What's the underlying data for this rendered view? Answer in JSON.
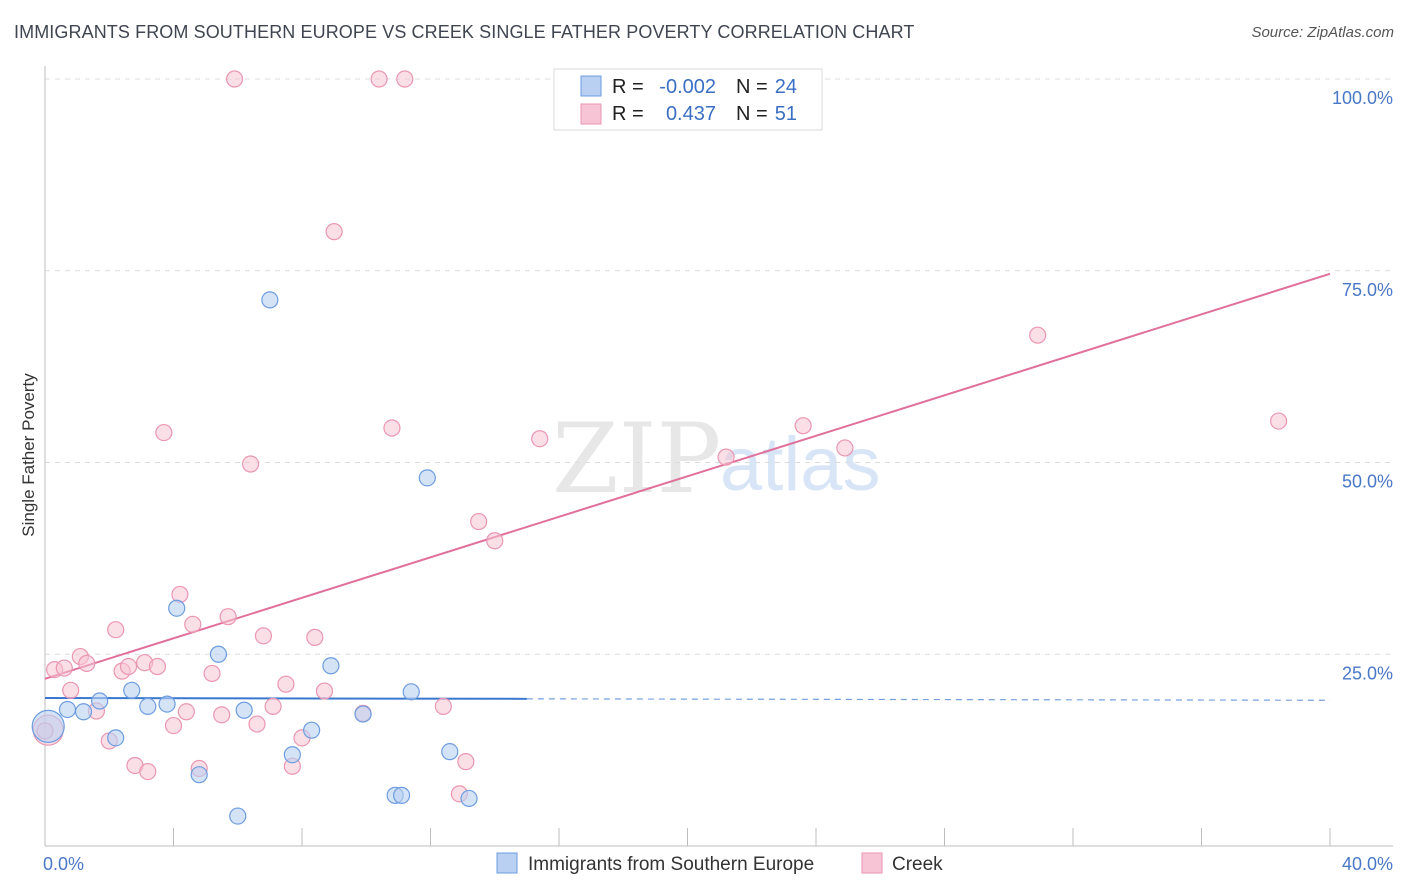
{
  "header": {
    "title": "IMMIGRANTS FROM SOUTHERN EUROPE VS CREEK SINGLE FATHER POVERTY CORRELATION CHART",
    "source": "Source: ZipAtlas.com"
  },
  "watermark": {
    "zip": "ZIP",
    "atlas": "atlas"
  },
  "colors": {
    "blue_fill": "#b9d0f2",
    "blue_stroke": "#6d9de0",
    "blue_line": "#3a78d0",
    "pink_fill": "#f6c4d4",
    "pink_stroke": "#eb96b2",
    "pink_line": "#e0709a",
    "grid": "#dcdcdc",
    "tick_text": "#4a78c8"
  },
  "legend_top": {
    "rows": [
      {
        "r_label": "R =",
        "r_value": "-0.002",
        "n_label": "N =",
        "n_value": "24"
      },
      {
        "r_label": "R =",
        "r_value": "0.437",
        "n_label": "N =",
        "n_value": "51"
      }
    ]
  },
  "legend_bottom": {
    "items": [
      "Immigrants from Southern Europe",
      "Creek"
    ]
  },
  "chart_data": {
    "type": "scatter",
    "title": "IMMIGRANTS FROM SOUTHERN EUROPE VS CREEK SINGLE FATHER POVERTY CORRELATION CHART",
    "xlabel": "",
    "ylabel": "Single Father Poverty",
    "xlim": [
      0,
      40
    ],
    "ylim": [
      0,
      100
    ],
    "x_tick_labels": [
      "0.0%",
      "40.0%"
    ],
    "y_tick_values": [
      25,
      50,
      75,
      100
    ],
    "y_tick_labels": [
      "25.0%",
      "50.0%",
      "75.0%",
      "100.0%"
    ],
    "grid": true,
    "series": [
      {
        "name": "Immigrants from Southern Europe",
        "r": -0.002,
        "n": 24,
        "points": [
          {
            "x": 0.1,
            "y": 15.6,
            "size": "large"
          },
          {
            "x": 0.7,
            "y": 17.8
          },
          {
            "x": 1.2,
            "y": 17.5
          },
          {
            "x": 1.7,
            "y": 18.9
          },
          {
            "x": 2.2,
            "y": 14.1
          },
          {
            "x": 2.7,
            "y": 20.3
          },
          {
            "x": 3.2,
            "y": 18.2
          },
          {
            "x": 3.8,
            "y": 18.5
          },
          {
            "x": 4.1,
            "y": 31.0
          },
          {
            "x": 4.8,
            "y": 9.3
          },
          {
            "x": 5.4,
            "y": 25.0
          },
          {
            "x": 6.0,
            "y": 3.9
          },
          {
            "x": 6.2,
            "y": 17.7
          },
          {
            "x": 7.0,
            "y": 71.2
          },
          {
            "x": 7.7,
            "y": 11.9
          },
          {
            "x": 8.3,
            "y": 15.1
          },
          {
            "x": 8.9,
            "y": 23.5
          },
          {
            "x": 9.9,
            "y": 17.2
          },
          {
            "x": 10.9,
            "y": 6.6
          },
          {
            "x": 11.1,
            "y": 6.6
          },
          {
            "x": 11.4,
            "y": 20.1
          },
          {
            "x": 11.9,
            "y": 48.0
          },
          {
            "x": 12.6,
            "y": 12.3
          },
          {
            "x": 13.2,
            "y": 6.2
          }
        ],
        "trend": {
          "x0": 0,
          "y0": 19.3,
          "x1": 40,
          "y1": 19.0,
          "solid_until_x": 15
        }
      },
      {
        "name": "Creek",
        "r": 0.437,
        "n": 51,
        "points": [
          {
            "x": 0.1,
            "y": 15.1,
            "size": "large"
          },
          {
            "x": 0.3,
            "y": 23.0
          },
          {
            "x": 0.6,
            "y": 23.2
          },
          {
            "x": 0.8,
            "y": 20.3
          },
          {
            "x": 1.1,
            "y": 24.7
          },
          {
            "x": 1.3,
            "y": 23.8
          },
          {
            "x": 1.6,
            "y": 17.6
          },
          {
            "x": 2.0,
            "y": 13.7
          },
          {
            "x": 2.2,
            "y": 28.2
          },
          {
            "x": 2.4,
            "y": 22.8
          },
          {
            "x": 2.6,
            "y": 23.4
          },
          {
            "x": 2.8,
            "y": 10.5
          },
          {
            "x": 3.1,
            "y": 23.9
          },
          {
            "x": 3.2,
            "y": 9.7
          },
          {
            "x": 3.5,
            "y": 23.4
          },
          {
            "x": 3.7,
            "y": 53.9
          },
          {
            "x": 4.0,
            "y": 15.7
          },
          {
            "x": 4.2,
            "y": 32.8
          },
          {
            "x": 4.4,
            "y": 17.5
          },
          {
            "x": 4.6,
            "y": 28.9
          },
          {
            "x": 4.8,
            "y": 10.1
          },
          {
            "x": 5.2,
            "y": 22.5
          },
          {
            "x": 5.5,
            "y": 17.1
          },
          {
            "x": 5.7,
            "y": 29.9
          },
          {
            "x": 5.9,
            "y": 100.0
          },
          {
            "x": 6.4,
            "y": 49.8
          },
          {
            "x": 6.6,
            "y": 15.9
          },
          {
            "x": 6.8,
            "y": 27.4
          },
          {
            "x": 7.1,
            "y": 18.2
          },
          {
            "x": 7.5,
            "y": 21.1
          },
          {
            "x": 7.7,
            "y": 10.4
          },
          {
            "x": 8.0,
            "y": 14.1
          },
          {
            "x": 8.4,
            "y": 27.2
          },
          {
            "x": 8.7,
            "y": 20.2
          },
          {
            "x": 9.0,
            "y": 80.1
          },
          {
            "x": 9.9,
            "y": 17.3
          },
          {
            "x": 10.4,
            "y": 100.0
          },
          {
            "x": 10.8,
            "y": 54.5
          },
          {
            "x": 11.2,
            "y": 100.0
          },
          {
            "x": 12.4,
            "y": 18.2
          },
          {
            "x": 12.9,
            "y": 6.8
          },
          {
            "x": 13.1,
            "y": 11.0
          },
          {
            "x": 13.5,
            "y": 42.3
          },
          {
            "x": 14.0,
            "y": 39.8
          },
          {
            "x": 15.4,
            "y": 53.1
          },
          {
            "x": 21.2,
            "y": 50.7
          },
          {
            "x": 23.6,
            "y": 54.8
          },
          {
            "x": 24.9,
            "y": 51.9
          },
          {
            "x": 30.9,
            "y": 66.6
          },
          {
            "x": 38.4,
            "y": 55.4
          },
          {
            "x": 0.0,
            "y": 15.0
          }
        ],
        "trend": {
          "x0": 0,
          "y0": 21.8,
          "x1": 40,
          "y1": 74.6
        }
      }
    ]
  }
}
